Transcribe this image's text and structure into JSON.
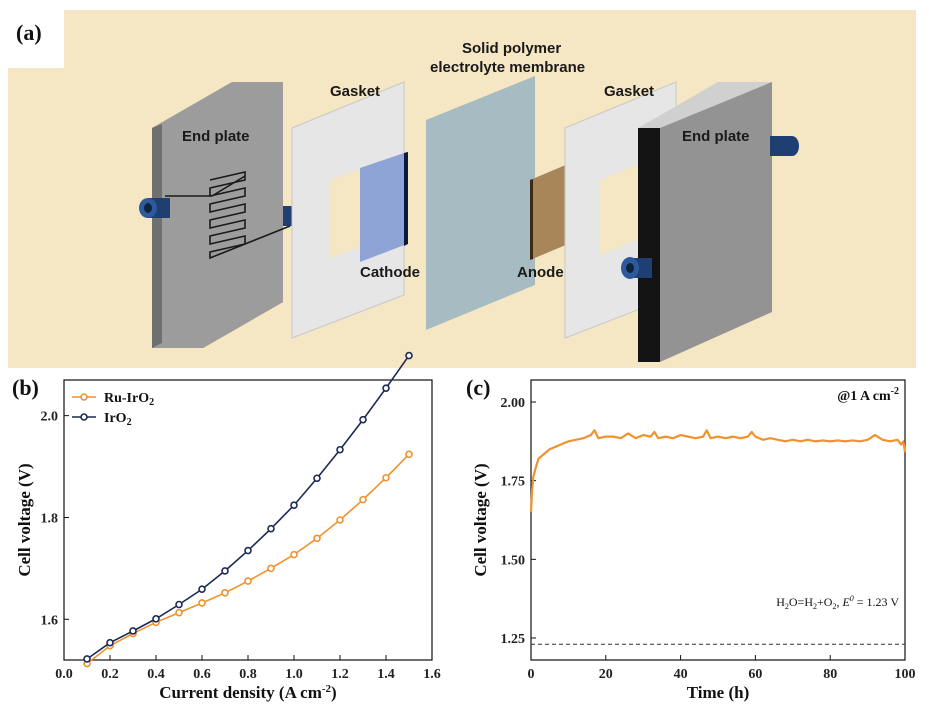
{
  "panels": {
    "a": "(a)",
    "b": "(b)",
    "c": "(c)"
  },
  "diagram": {
    "labels": {
      "end_plate_left": "End plate",
      "gasket_left": "Gasket",
      "membrane_line1": "Solid polymer",
      "membrane_line2": "electrolyte membrane",
      "gasket_right": "Gasket",
      "end_plate_right": "End plate",
      "cathode": "Cathode",
      "anode": "Anode"
    },
    "colors": {
      "background": "#f5e6c4",
      "end_plate": "#9a9a9a",
      "gasket": "#e6e6e6",
      "membrane": "#a7bcc2",
      "cathode": "#8ea3d6",
      "anode": "#a8865a",
      "pipe": "#1f3f73"
    }
  },
  "chart_data": [
    {
      "type": "line",
      "xlabel": "Current density (A cm",
      "xlabel_sup": "-2",
      "xlabel_end": ")",
      "ylabel": "Cell voltage (V)",
      "xlim": [
        0.0,
        1.6
      ],
      "ylim": [
        1.52,
        2.07
      ],
      "xticks": [
        "0.0",
        "0.2",
        "0.4",
        "0.6",
        "0.8",
        "1.0",
        "1.2",
        "1.4",
        "1.6"
      ],
      "yticks": [
        "1.6",
        "1.8",
        "2.0"
      ],
      "legend_position": "top-left",
      "x": [
        0.1,
        0.2,
        0.3,
        0.4,
        0.5,
        0.6,
        0.7,
        0.8,
        0.9,
        1.0,
        1.1,
        1.2,
        1.3,
        1.4,
        1.5
      ],
      "series": [
        {
          "name": "Ru-IrO",
          "name_sub": "2",
          "color": "#f0922e",
          "values": [
            1.513,
            1.548,
            1.572,
            1.594,
            1.613,
            1.632,
            1.652,
            1.675,
            1.7,
            1.727,
            1.759,
            1.795,
            1.835,
            1.878,
            1.924
          ]
        },
        {
          "name": "IrO",
          "name_sub": "2",
          "color": "#1c2a57",
          "values": [
            1.522,
            1.554,
            1.577,
            1.601,
            1.629,
            1.659,
            1.695,
            1.735,
            1.778,
            1.824,
            1.877,
            1.933,
            1.992,
            2.054,
            2.118
          ]
        }
      ]
    },
    {
      "type": "line",
      "xlabel": "Time (h)",
      "ylabel": "Cell voltage (V)",
      "xlim": [
        0,
        100
      ],
      "ylim": [
        1.18,
        2.07
      ],
      "xticks": [
        "0",
        "20",
        "40",
        "60",
        "80",
        "100"
      ],
      "yticks": [
        "1.25",
        "1.50",
        "1.75",
        "2.00"
      ],
      "annotation": "@1 A cm",
      "annotation_sup": "-2",
      "reference_line": {
        "y": 1.23,
        "label_part1": "H",
        "label_sub1": "2",
        "label_part2": "O=H",
        "label_sub2": "2",
        "label_part3": "+O",
        "label_sub3": "2",
        "label_part4": ", ",
        "label_e": "E",
        "label_e_sup": "0",
        "label_part5": " = 1.23 V"
      },
      "series": [
        {
          "color": "#f0922e",
          "x": [
            0,
            0.3,
            0.6,
            1,
            1.5,
            2,
            3,
            4,
            5,
            6,
            7,
            8,
            9,
            10,
            12,
            14,
            16,
            17,
            18,
            20,
            22,
            24,
            26,
            28,
            30,
            32,
            33,
            34,
            36,
            38,
            40,
            42,
            44,
            46,
            47,
            48,
            50,
            52,
            54,
            56,
            58,
            59,
            60,
            62,
            64,
            66,
            68,
            70,
            72,
            74,
            76,
            78,
            80,
            82,
            84,
            86,
            88,
            90,
            92,
            94,
            96,
            98,
            99,
            99.6,
            100
          ],
          "values": [
            1.65,
            1.72,
            1.76,
            1.78,
            1.8,
            1.82,
            1.83,
            1.84,
            1.85,
            1.855,
            1.86,
            1.865,
            1.87,
            1.875,
            1.88,
            1.885,
            1.895,
            1.91,
            1.885,
            1.89,
            1.89,
            1.885,
            1.9,
            1.885,
            1.895,
            1.89,
            1.905,
            1.885,
            1.89,
            1.885,
            1.895,
            1.89,
            1.885,
            1.89,
            1.91,
            1.885,
            1.89,
            1.885,
            1.89,
            1.885,
            1.89,
            1.905,
            1.89,
            1.88,
            1.885,
            1.88,
            1.875,
            1.88,
            1.875,
            1.88,
            1.875,
            1.878,
            1.875,
            1.878,
            1.875,
            1.878,
            1.875,
            1.88,
            1.895,
            1.88,
            1.875,
            1.88,
            1.865,
            1.875,
            1.84
          ]
        }
      ]
    }
  ]
}
